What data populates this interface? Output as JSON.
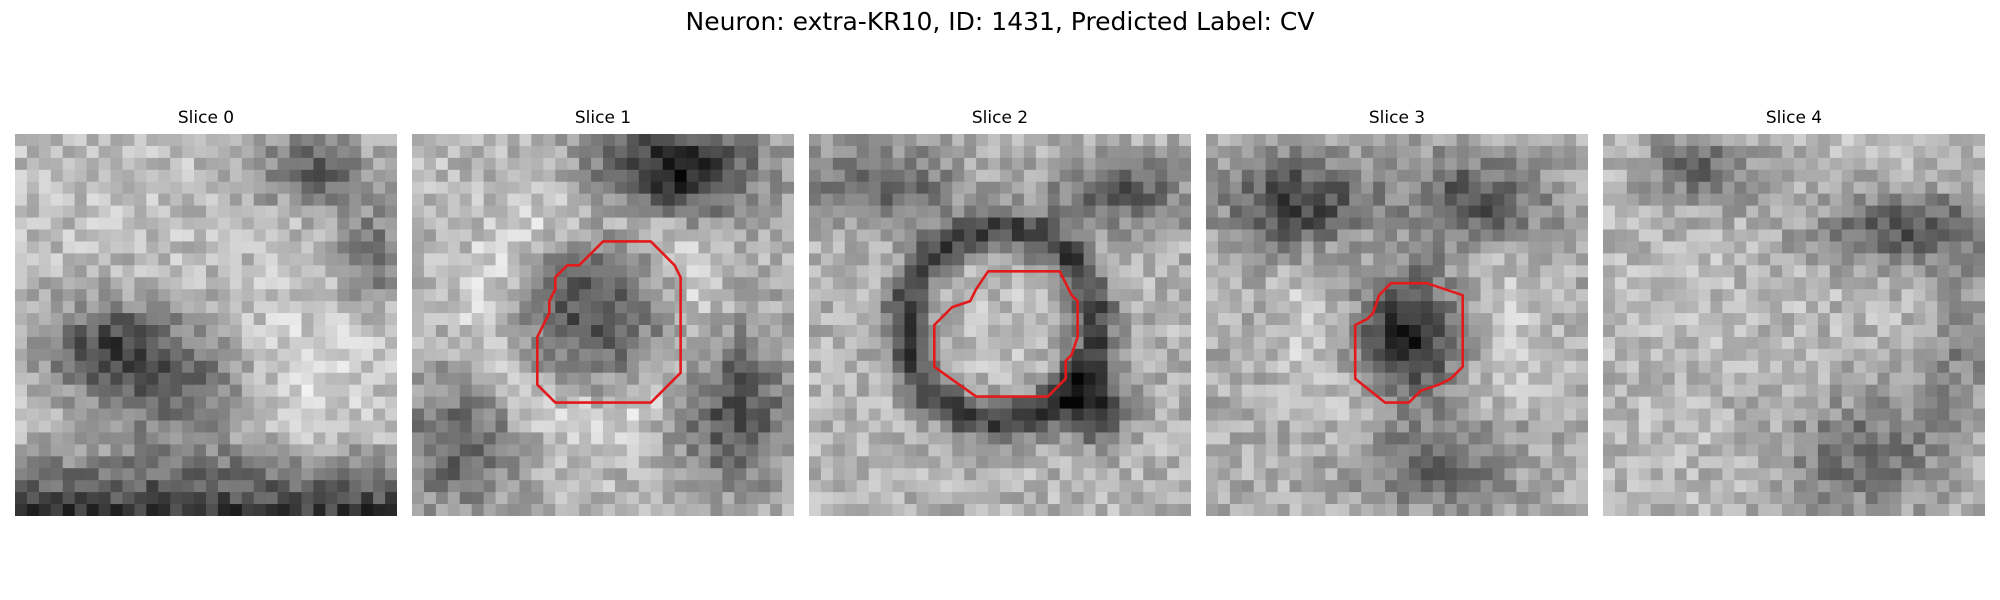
{
  "figure": {
    "title": "Neuron: extra-KR10, ID: 1431, Predicted Label: CV",
    "contour_color": "#e31a1c",
    "colormap": "gray"
  },
  "panels": [
    {
      "title": "Slice 0",
      "has_contour": false
    },
    {
      "title": "Slice 1",
      "has_contour": true
    },
    {
      "title": "Slice 2",
      "has_contour": true
    },
    {
      "title": "Slice 3",
      "has_contour": true
    },
    {
      "title": "Slice 4",
      "has_contour": false
    }
  ]
}
